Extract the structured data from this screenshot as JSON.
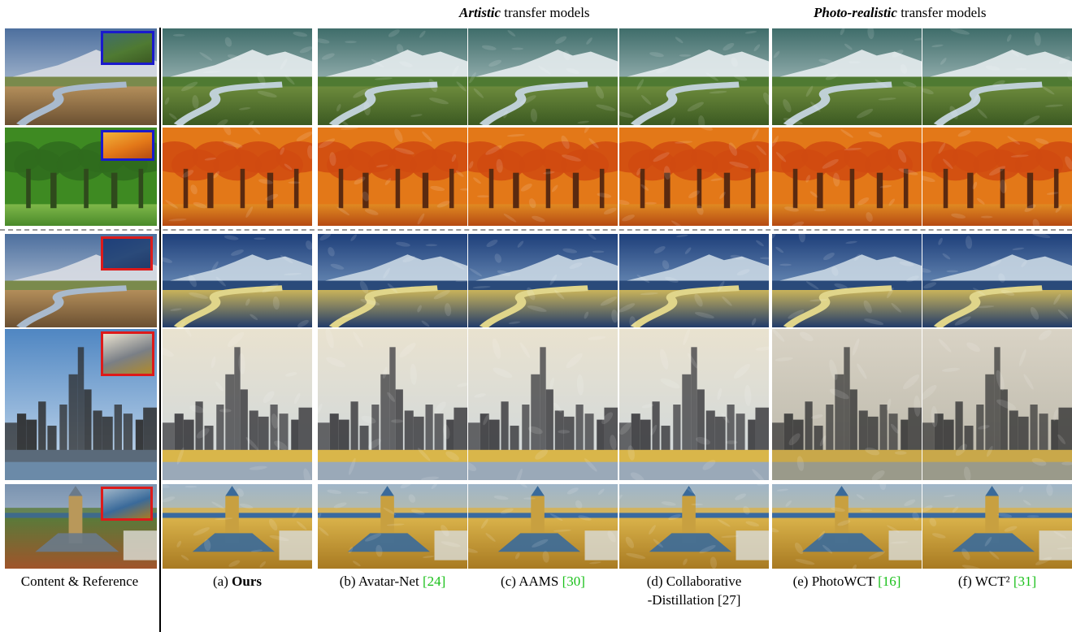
{
  "headers": {
    "artistic_emph": "Artistic",
    "artistic_rest": " transfer models",
    "photo_emph": "Photo-realistic",
    "photo_rest": " transfer models"
  },
  "captions": {
    "content": "Content & Reference",
    "a_prefix": "(a) ",
    "a_bold": "Ours",
    "b_text": "(b) Avatar-Net ",
    "b_ref": "[24]",
    "c_text": "(c) AAMS ",
    "c_ref": "[30]",
    "d_line1": "(d) Collaborative",
    "d_line2": "-Distillation ",
    "d_ref": "[27]",
    "e_text": "(e) PhotoWCT ",
    "e_ref": "[16]",
    "f_text": "(f) WCT² ",
    "f_ref": "[31]"
  },
  "rows": [
    {
      "scene": "river-meadow",
      "reference": "green-landscape",
      "inset_color": "#1a1acc"
    },
    {
      "scene": "forest-park",
      "reference": "autumn-forest",
      "inset_color": "#1a1acc"
    },
    {
      "scene": "river-meadow",
      "reference": "starry-night-painting",
      "inset_color": "#dd1a1a"
    },
    {
      "scene": "city-skyline",
      "reference": "abstract-mosaic-painting",
      "inset_color": "#dd1a1a"
    },
    {
      "scene": "campus-clocktower",
      "reference": "wheat-field-painting",
      "inset_color": "#dd1a1a"
    }
  ],
  "colors": {
    "citation": "#19c019",
    "separator": "#9a9a9a"
  }
}
